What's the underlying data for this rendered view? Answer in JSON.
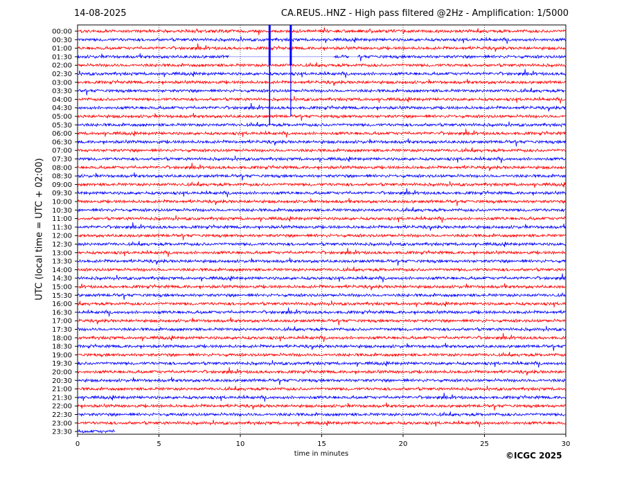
{
  "header": {
    "date": "14-08-2025",
    "title": "CA.REUS..HNZ - High pass filtered @2Hz - Amplification: 1/5000"
  },
  "footer": {
    "copyright": "©ICGC 2025"
  },
  "colors": {
    "odd_row": "#ff0000",
    "even_row": "#0000ff",
    "grid": "#000000"
  },
  "chart_data": {
    "type": "line",
    "xlabel": "time in minutes",
    "ylabel": "UTC (local time = UTC + 02:00)",
    "xlim": [
      0,
      30
    ],
    "x_ticks": [
      "0",
      "5",
      "10",
      "15",
      "20",
      "25",
      "30"
    ],
    "y_ticks": [
      "00:00",
      "00:30",
      "01:00",
      "01:30",
      "02:00",
      "02:30",
      "03:00",
      "03:30",
      "04:00",
      "04:30",
      "05:00",
      "05:30",
      "06:00",
      "06:30",
      "07:00",
      "07:30",
      "08:00",
      "08:30",
      "09:00",
      "09:30",
      "10:00",
      "10:30",
      "11:00",
      "11:30",
      "12:00",
      "12:30",
      "13:00",
      "13:30",
      "14:00",
      "14:30",
      "15:00",
      "15:30",
      "16:00",
      "16:30",
      "17:00",
      "17:30",
      "18:00",
      "18:30",
      "19:00",
      "19:30",
      "20:00",
      "20:30",
      "21:00",
      "21:30",
      "22:00",
      "22:30",
      "23:00",
      "23:30"
    ],
    "grid": "vertical dotted",
    "color_cycle": [
      "red",
      "blue"
    ],
    "notable_spikes_minutes": [
      11.8,
      13.1
    ],
    "gaps": [
      {
        "row": "01:30",
        "from": 9.3,
        "to": 15.7
      },
      {
        "row": "01:30",
        "from": 16.7,
        "to": 17.2
      }
    ]
  }
}
